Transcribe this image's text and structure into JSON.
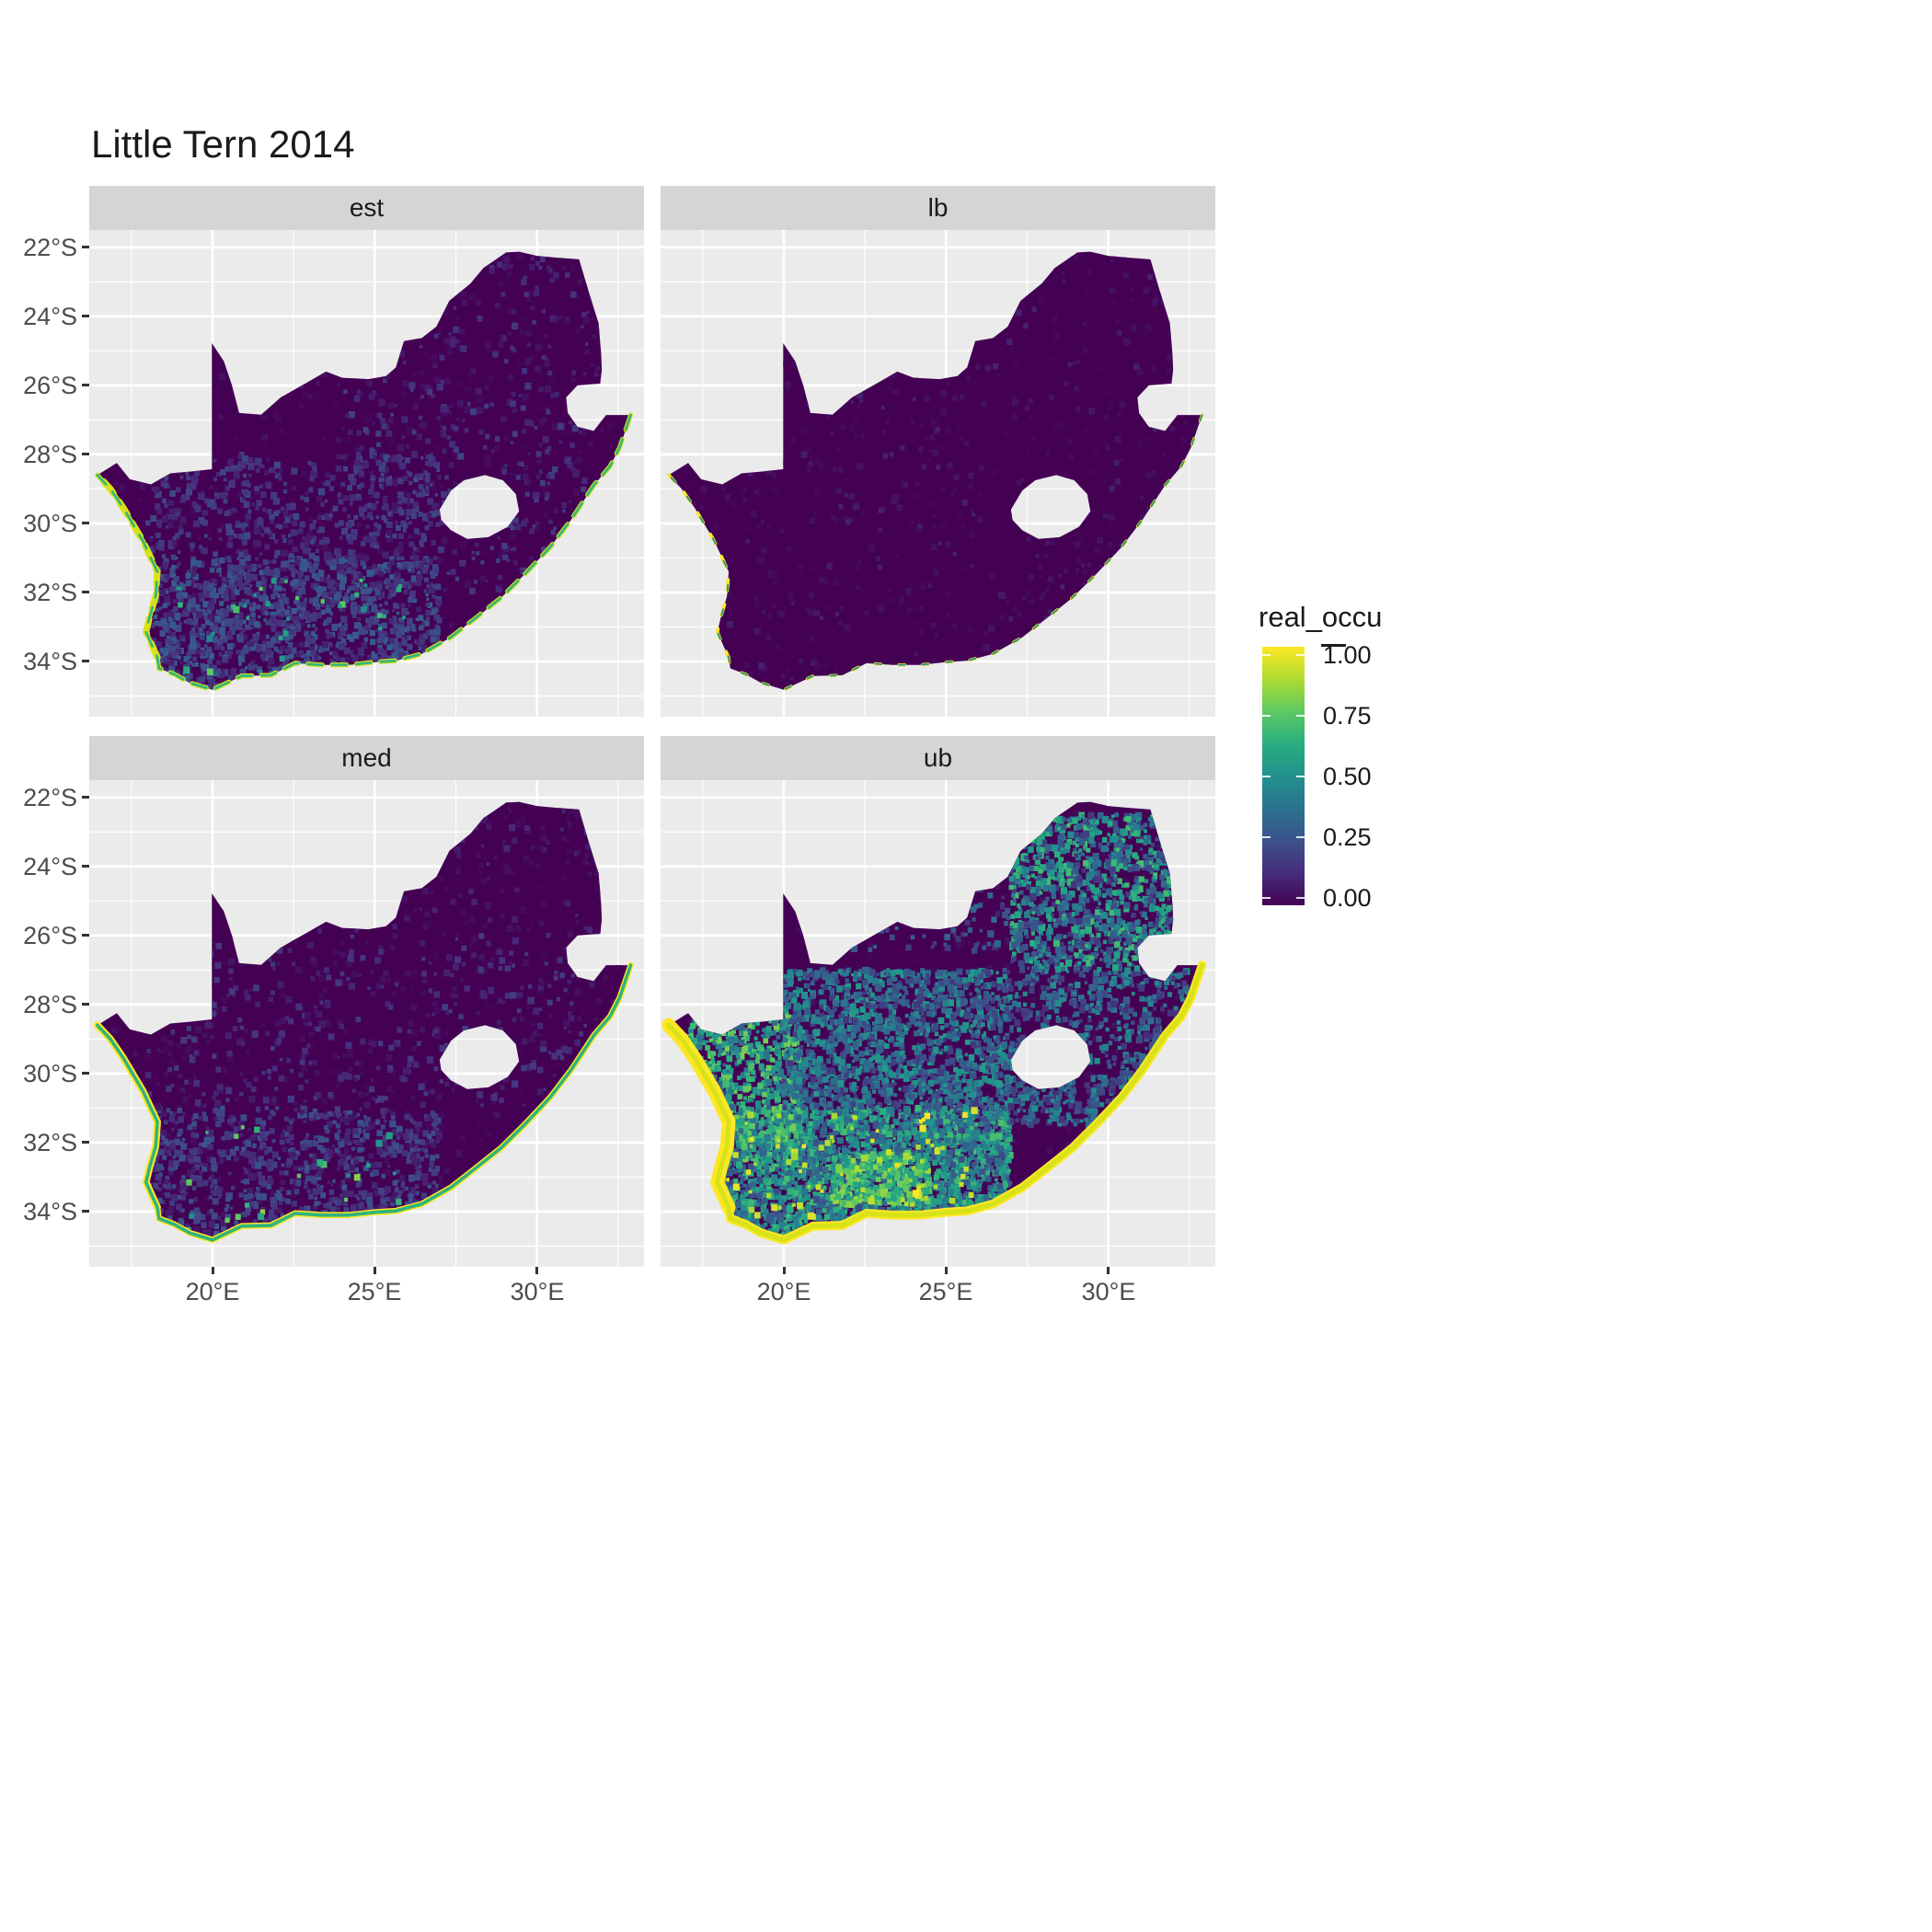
{
  "title": "Little Tern 2014",
  "axes": {
    "y_ticks": [
      "22°S",
      "24°S",
      "26°S",
      "28°S",
      "30°S",
      "32°S",
      "34°S"
    ],
    "x_ticks": [
      "20°E",
      "25°E",
      "30°E"
    ]
  },
  "legend": {
    "title": "real_occu",
    "labels": [
      "1.00",
      "0.75",
      "0.50",
      "0.25",
      "0.00"
    ]
  },
  "colors": {
    "panel_bg": "#ebebeb",
    "strip_bg": "#d5d5d5",
    "grid": "#ffffff",
    "map_base": "#440154",
    "axis_text": "#4d4d4d",
    "title_text": "#1a1a1a",
    "viridis": [
      "#440154",
      "#472d7b",
      "#3b528b",
      "#2c728e",
      "#21918c",
      "#28ae80",
      "#5ec962",
      "#addc30",
      "#fde725"
    ]
  },
  "chart_data": {
    "type": "heatmap",
    "title": "Little Tern 2014",
    "variable": "real_occu",
    "geography": "Raster occupancy maps of South Africa (Lesotho shown as hole, Eswatini notch on east)",
    "x": {
      "label": "longitude",
      "unit": "degrees east",
      "ticks": [
        20,
        25,
        30
      ],
      "range": [
        16.2,
        33.3
      ]
    },
    "y": {
      "label": "latitude",
      "unit": "degrees south",
      "ticks": [
        22,
        24,
        26,
        28,
        30,
        32,
        34
      ],
      "range": [
        -35.6,
        -21.5
      ]
    },
    "legend": {
      "title": "real_occu",
      "range": [
        0,
        1
      ],
      "ticks": [
        1.0,
        0.75,
        0.5,
        0.25,
        0.0
      ],
      "palette": "viridis",
      "position": "right"
    },
    "grid": true,
    "facets": [
      {
        "label": "est",
        "summary": "Estimate: near 0 over most of the country; sparse low values (~0.05-0.35) across the south-west and southern Cape interior; green/yellow high-occupancy fringe along the west and south coasts.",
        "pattern": {
          "coastal_fringe": {
            "color": "#d8e219",
            "inner_color": "#35b779",
            "width": 0.14,
            "west_width": 0.2,
            "dash": "0.45 0.3"
          },
          "speckle_regions": [
            {
              "lon": [
                17.5,
                27.0
              ],
              "lat": [
                -34.8,
                -31.0
              ],
              "n": 1500,
              "occu": [
                0.08,
                0.3
              ]
            },
            {
              "lon": [
                18.0,
                27.0
              ],
              "lat": [
                -31.0,
                -28.0
              ],
              "n": 500,
              "occu": [
                0.06,
                0.22
              ]
            },
            {
              "lon": [
                24.0,
                32.0
              ],
              "lat": [
                -32.0,
                -26.0
              ],
              "n": 350,
              "occu": [
                0.05,
                0.2
              ]
            },
            {
              "lon": [
                22.0,
                32.0
              ],
              "lat": [
                -26.0,
                -22.3
              ],
              "n": 150,
              "occu": [
                0.04,
                0.15
              ]
            },
            {
              "lon": [
                18.0,
                26.0
              ],
              "lat": [
                -34.6,
                -31.5
              ],
              "n": 40,
              "occu": [
                0.45,
                0.75
              ]
            }
          ]
        }
      },
      {
        "label": "lb",
        "summary": "Lower bound: essentially 0 everywhere inland; only tiny bright specks along the southern and western coastline.",
        "pattern": {
          "coastal_fringe": {
            "color": "#fde725",
            "inner_color": "#21918c",
            "width": 0.09,
            "west_width": 0.1,
            "dash": "0.18 0.55"
          },
          "speckle_regions": [
            {
              "lon": [
                17.0,
                32.5
              ],
              "lat": [
                -34.5,
                -22.3
              ],
              "n": 220,
              "occu": [
                0.02,
                0.1
              ]
            }
          ]
        }
      },
      {
        "label": "med",
        "summary": "Median: near 0 inland with faint low values (~0.05-0.25) in the south-west; continuous yellow high-occupancy fringe along west and south coasts.",
        "pattern": {
          "coastal_fringe": {
            "color": "#fde725",
            "inner_color": "#2fb47c",
            "width": 0.18,
            "west_width": 0.22,
            "dash": ""
          },
          "speckle_regions": [
            {
              "lon": [
                17.5,
                27.0
              ],
              "lat": [
                -34.8,
                -31.0
              ],
              "n": 1000,
              "occu": [
                0.06,
                0.26
              ]
            },
            {
              "lon": [
                18.0,
                32.0
              ],
              "lat": [
                -31.0,
                -26.0
              ],
              "n": 420,
              "occu": [
                0.04,
                0.18
              ]
            },
            {
              "lon": [
                22.0,
                32.0
              ],
              "lat": [
                -26.0,
                -22.3
              ],
              "n": 120,
              "occu": [
                0.03,
                0.12
              ]
            },
            {
              "lon": [
                18.0,
                26.0
              ],
              "lat": [
                -34.6,
                -31.5
              ],
              "n": 30,
              "occu": [
                0.5,
                0.85
              ]
            }
          ]
        }
      },
      {
        "label": "ub",
        "summary": "Upper bound: widespread moderate values (~0.2-0.7) over the southern half and west, bright green patches (~0.6-0.9) in Western Cape and north-east, thick yellow (~1.0) band along the west coast and coastal fringe elsewhere.",
        "pattern": {
          "coastal_fringe": {
            "color": "#fde725",
            "inner_color": "#d8e219",
            "width": 0.26,
            "west_width": 0.42,
            "dash": ""
          },
          "speckle_regions": [
            {
              "lon": [
                17.5,
                27.0
              ],
              "lat": [
                -34.8,
                -31.0
              ],
              "n": 3000,
              "occu": [
                0.22,
                0.7
              ]
            },
            {
              "lon": [
                17.0,
                20.5
              ],
              "lat": [
                -32.5,
                -28.3
              ],
              "n": 800,
              "occu": [
                0.3,
                0.8
              ]
            },
            {
              "lon": [
                20.0,
                27.0
              ],
              "lat": [
                -31.0,
                -27.0
              ],
              "n": 1500,
              "occu": [
                0.15,
                0.55
              ]
            },
            {
              "lon": [
                27.0,
                32.5
              ],
              "lat": [
                -31.5,
                -27.0
              ],
              "n": 900,
              "occu": [
                0.12,
                0.5
              ]
            },
            {
              "lon": [
                27.0,
                32.0
              ],
              "lat": [
                -27.0,
                -22.5
              ],
              "n": 1200,
              "occu": [
                0.15,
                0.7
              ]
            },
            {
              "lon": [
                21.5,
                24.5
              ],
              "lat": [
                -33.8,
                -32.3
              ],
              "n": 320,
              "occu": [
                0.5,
                0.9
              ]
            },
            {
              "lon": [
                22.0,
                27.0
              ],
              "lat": [
                -26.5,
                -22.5
              ],
              "n": 220,
              "occu": [
                0.08,
                0.35
              ]
            },
            {
              "lon": [
                18.0,
                26.0
              ],
              "lat": [
                -34.7,
                -31.0
              ],
              "n": 90,
              "occu": [
                0.85,
                1.0
              ]
            }
          ]
        }
      }
    ]
  }
}
